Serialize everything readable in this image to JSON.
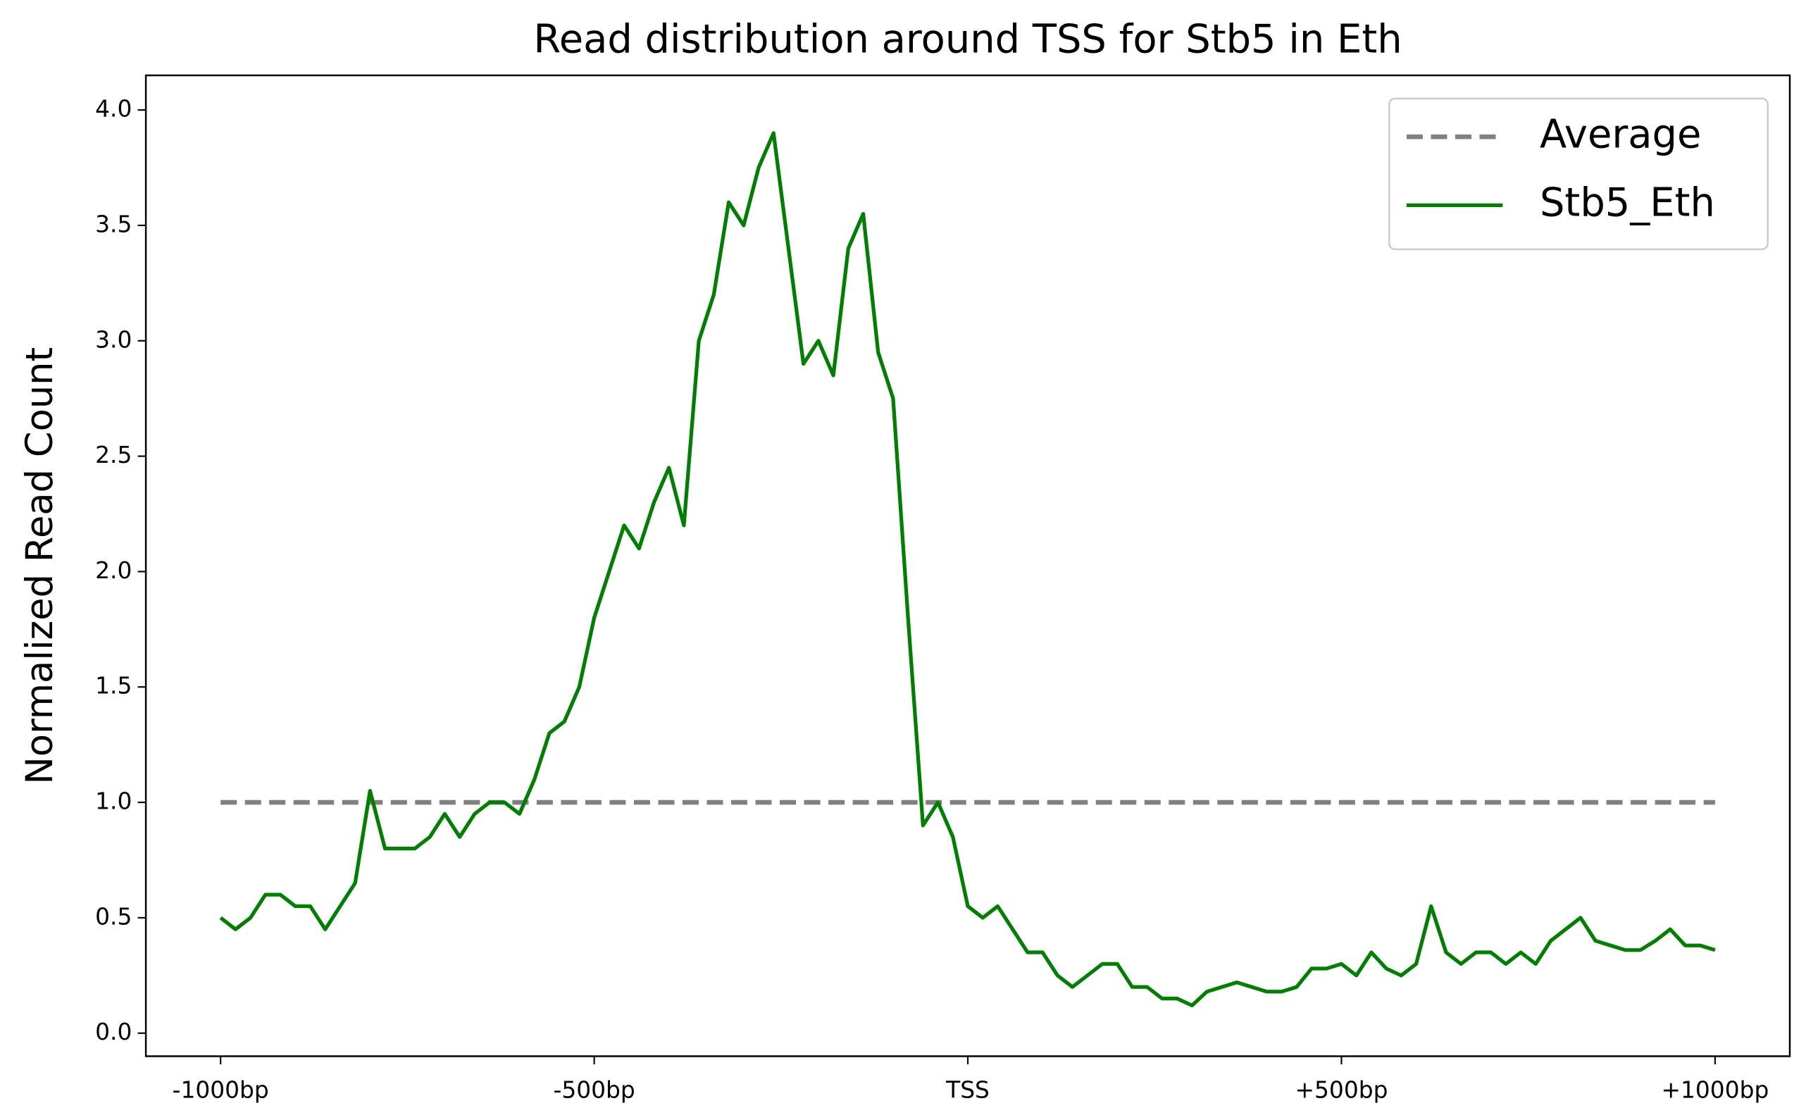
{
  "chart_data": {
    "type": "line",
    "title": "Read distribution around TSS for Stb5 in Eth",
    "y_label": "Normalized Read Count",
    "xlim": [
      -1100,
      1100
    ],
    "ylim": [
      -0.1,
      4.15
    ],
    "xticks": [
      {
        "value": -1000,
        "label": "-1000bp"
      },
      {
        "value": -500,
        "label": "-500bp"
      },
      {
        "value": 0,
        "label": "TSS"
      },
      {
        "value": 500,
        "label": "+500bp"
      },
      {
        "value": 1000,
        "label": "+1000bp"
      }
    ],
    "yticks": [
      {
        "value": 0,
        "label": "0.0"
      },
      {
        "value": 0.5,
        "label": "0.5"
      },
      {
        "value": 1,
        "label": "1.0"
      },
      {
        "value": 1.5,
        "label": "1.5"
      },
      {
        "value": 2,
        "label": "2.0"
      },
      {
        "value": 2.5,
        "label": "2.5"
      },
      {
        "value": 3,
        "label": "3.0"
      },
      {
        "value": 3.5,
        "label": "3.5"
      },
      {
        "value": 4,
        "label": "4.0"
      }
    ],
    "legend_position": "upper right",
    "series": [
      {
        "name": "Average",
        "color": "#808080",
        "dashed": true,
        "x": [
          -1000,
          1000
        ],
        "values": [
          1,
          1
        ]
      },
      {
        "name": "Stb5_Eth",
        "color": "#008000",
        "dashed": false,
        "x": [
          -1000,
          -980,
          -960,
          -940,
          -920,
          -900,
          -880,
          -860,
          -840,
          -820,
          -800,
          -780,
          -760,
          -740,
          -720,
          -700,
          -680,
          -660,
          -640,
          -620,
          -600,
          -580,
          -560,
          -540,
          -520,
          -500,
          -480,
          -460,
          -440,
          -420,
          -400,
          -380,
          -360,
          -340,
          -320,
          -300,
          -280,
          -260,
          -240,
          -220,
          -200,
          -180,
          -160,
          -140,
          -120,
          -100,
          -80,
          -60,
          -40,
          -20,
          0,
          20,
          40,
          60,
          80,
          100,
          120,
          140,
          160,
          180,
          200,
          220,
          240,
          260,
          280,
          300,
          320,
          340,
          360,
          380,
          400,
          420,
          440,
          460,
          480,
          500,
          520,
          540,
          560,
          580,
          600,
          620,
          640,
          660,
          680,
          700,
          720,
          740,
          760,
          780,
          800,
          820,
          840,
          860,
          880,
          900,
          920,
          940,
          960,
          980,
          1000
        ],
        "values": [
          0.5,
          0.45,
          0.5,
          0.6,
          0.6,
          0.55,
          0.55,
          0.45,
          0.55,
          0.65,
          1.05,
          0.8,
          0.8,
          0.8,
          0.85,
          0.95,
          0.85,
          0.95,
          1.0,
          1.0,
          0.95,
          1.1,
          1.3,
          1.35,
          1.5,
          1.8,
          2.0,
          2.2,
          2.1,
          2.3,
          2.45,
          2.2,
          3.0,
          3.2,
          3.6,
          3.5,
          3.75,
          3.9,
          3.4,
          2.9,
          3.0,
          2.85,
          3.4,
          3.55,
          2.95,
          2.75,
          1.8,
          0.9,
          1.0,
          0.85,
          0.55,
          0.5,
          0.55,
          0.45,
          0.35,
          0.35,
          0.25,
          0.2,
          0.25,
          0.3,
          0.3,
          0.2,
          0.2,
          0.15,
          0.15,
          0.12,
          0.18,
          0.2,
          0.22,
          0.2,
          0.18,
          0.18,
          0.2,
          0.28,
          0.28,
          0.3,
          0.25,
          0.35,
          0.28,
          0.25,
          0.3,
          0.55,
          0.35,
          0.3,
          0.35,
          0.35,
          0.3,
          0.35,
          0.3,
          0.4,
          0.45,
          0.5,
          0.4,
          0.38,
          0.36,
          0.36,
          0.4,
          0.45,
          0.38,
          0.38,
          0.36
        ]
      }
    ]
  }
}
